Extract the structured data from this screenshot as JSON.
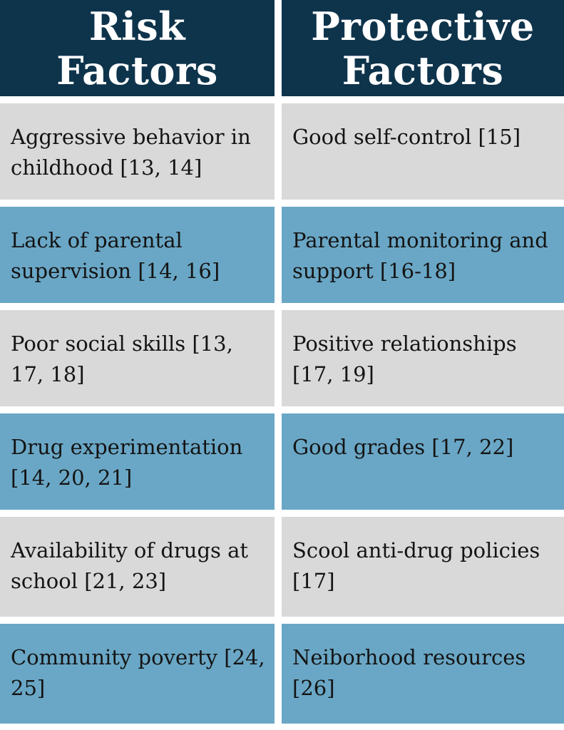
{
  "headers": {
    "risk_line1": "Risk",
    "risk_line2": "Factors",
    "protective_line1": "Protective",
    "protective_line2": "Factors"
  },
  "rows": [
    {
      "shade": "gray",
      "risk": {
        "text": "Aggressive behavior in childhood ",
        "refs": "[13, 14]"
      },
      "protective": {
        "text": "Good self-control ",
        "refs": "[15]"
      }
    },
    {
      "shade": "blue",
      "risk": {
        "text": "Lack of parental supervision ",
        "refs": "[14, 16]"
      },
      "protective": {
        "text": "Parental monitoring and support ",
        "refs": "[16-18]"
      }
    },
    {
      "shade": "gray",
      "risk": {
        "text": "Poor social skills ",
        "refs": "[13, 17, 18]"
      },
      "protective": {
        "text": "Positive relationships ",
        "refs": "[17, 19]"
      }
    },
    {
      "shade": "blue",
      "risk": {
        "text": "Drug experimentation ",
        "refs": "[14, 20, 21]"
      },
      "protective": {
        "text": "Good grades ",
        "refs": "[17, 22]"
      }
    },
    {
      "shade": "gray",
      "risk": {
        "text": "Availability of drugs at school ",
        "refs": "[21, 23]"
      },
      "protective": {
        "text": "Scool anti-drug policies ",
        "refs": "[17]"
      }
    },
    {
      "shade": "blue",
      "risk": {
        "text": "Community poverty ",
        "refs": "[24, 25]"
      },
      "protective": {
        "text": "Neiborhood resources ",
        "refs": "[26]"
      }
    }
  ],
  "colors": {
    "header_bg": "#0e344c",
    "gray_row": "#d9d9d9",
    "blue_row": "#6aa7c6",
    "text": "#141414"
  }
}
